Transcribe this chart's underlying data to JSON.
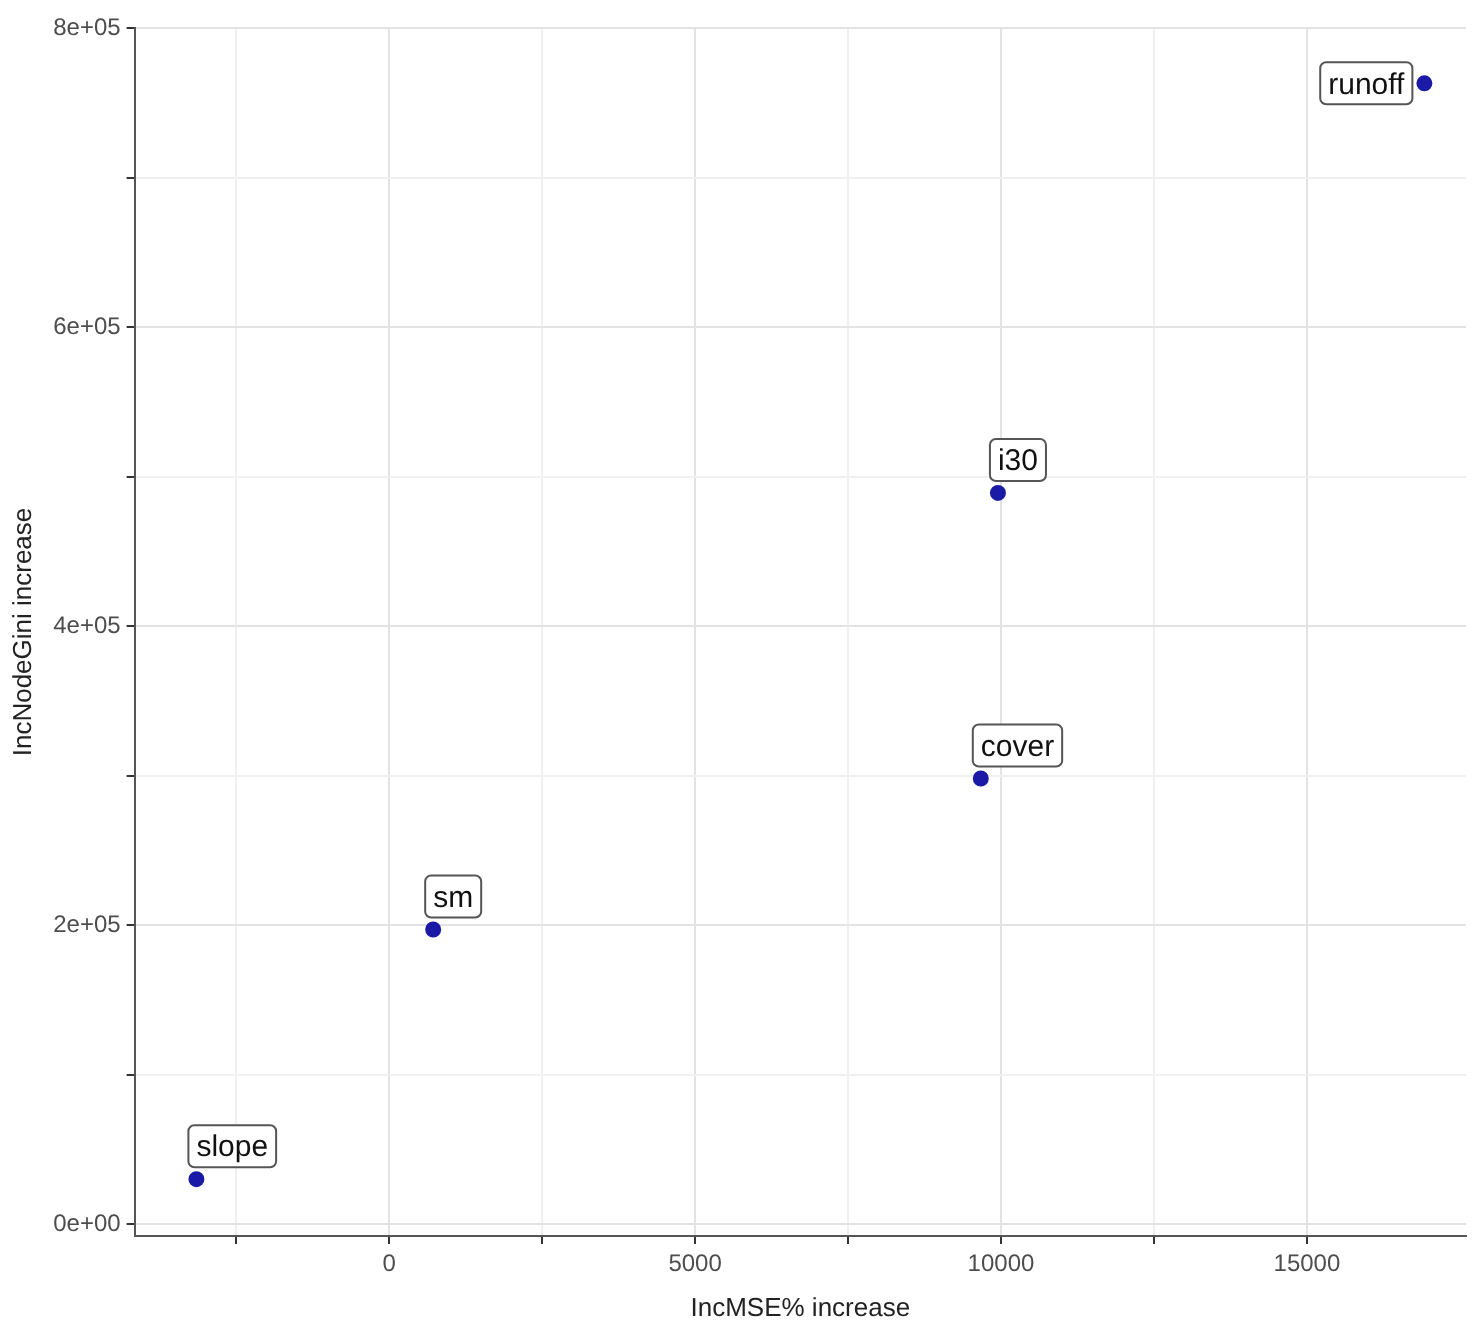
{
  "chart_data": {
    "type": "scatter",
    "xlabel": "IncMSE% increase",
    "ylabel": "IncNodeGini increase",
    "series": [
      {
        "color": "#1a1aa6",
        "x": [
          -3150,
          720,
          9670,
          9950,
          16920
        ],
        "values": [
          30000,
          197000,
          298000,
          489000,
          763000
        ]
      }
    ],
    "xlim": [
      -4160,
      17600
    ],
    "ylim": [
      -8000,
      800000
    ],
    "xticks": [
      {
        "value": -2500,
        "label": null
      },
      0,
      {
        "value": 2500,
        "label": null
      },
      5000,
      {
        "value": 7500,
        "label": null
      },
      10000,
      {
        "value": 12500,
        "label": null
      },
      15000
    ],
    "yticks": [
      {
        "value": 0,
        "label": "0e+00"
      },
      {
        "value": 100000,
        "label": null
      },
      {
        "value": 200000,
        "label": "2e+05"
      },
      {
        "value": 300000,
        "label": null
      },
      {
        "value": 400000,
        "label": "4e+05"
      },
      {
        "value": 500000,
        "label": null
      },
      {
        "value": 600000,
        "label": "6e+05"
      },
      {
        "value": 700000,
        "label": null
      },
      {
        "value": 800000,
        "label": "8e+05"
      }
    ],
    "annotations": [
      {
        "text": "slope",
        "x": -3150,
        "y": 30000
      },
      {
        "text": "sm",
        "x": 720,
        "y": 197000
      },
      {
        "text": "cover",
        "x": 9670,
        "y": 298000
      },
      {
        "text": "i30",
        "x": 9950,
        "y": 489000
      },
      {
        "text": "runoff",
        "x": 16920,
        "y": 763000
      }
    ],
    "grid": true,
    "marker": "circle",
    "legend": false
  }
}
